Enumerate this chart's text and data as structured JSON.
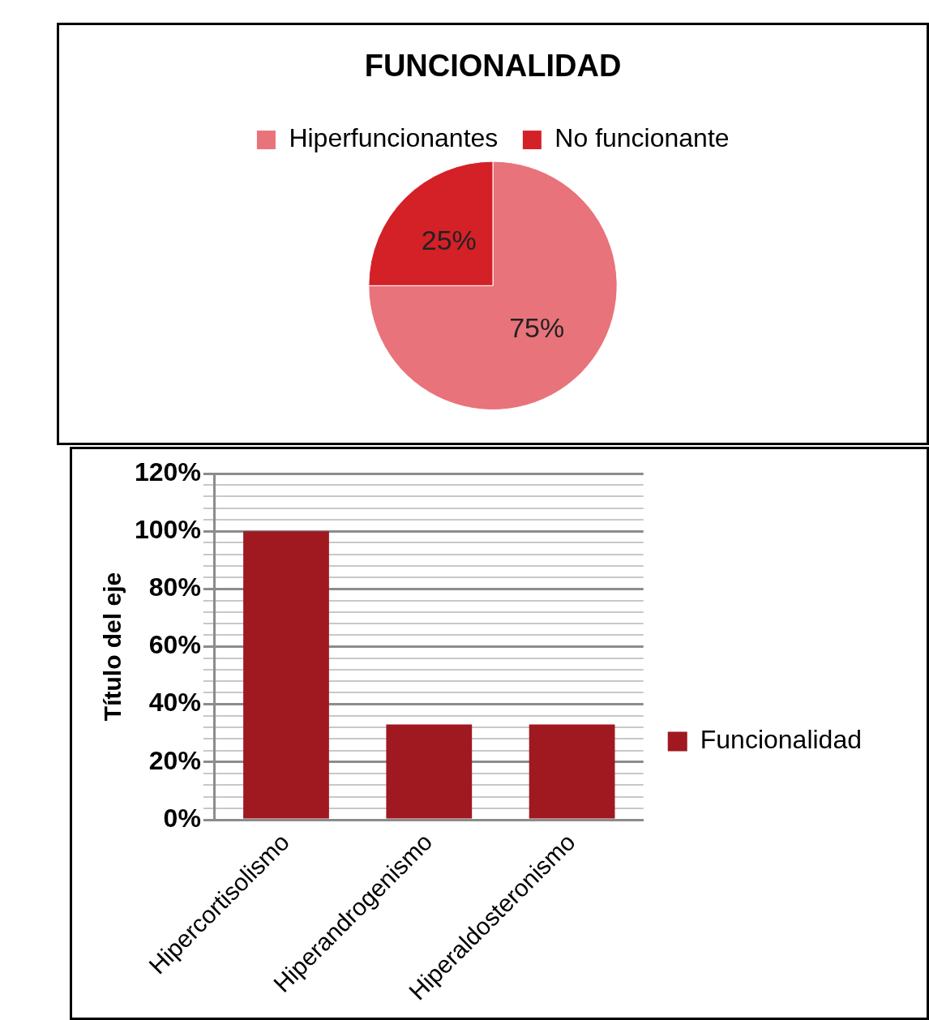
{
  "chart_data": [
    {
      "type": "pie",
      "title": "FUNCIONALIDAD",
      "categories": [
        "Hiperfuncionantes",
        "No funcionante"
      ],
      "values": [
        75,
        25
      ],
      "colors": [
        "#e8737a",
        "#d42027"
      ],
      "value_labels": [
        "75%",
        "25%"
      ],
      "legend": "top"
    },
    {
      "type": "bar",
      "ylabel": "Título del eje",
      "categories": [
        "Hipercortisolismo",
        "Hiperandrogenismo",
        "Hiperaldosteronismo"
      ],
      "series": [
        {
          "name": "Funcionalidad",
          "color": "#a01820",
          "values": [
            100,
            33,
            33
          ]
        }
      ],
      "ylim": [
        0,
        120
      ],
      "yticks": [
        {
          "value": 0,
          "label": "0%"
        },
        {
          "value": 4,
          "label": null
        },
        {
          "value": 8,
          "label": null
        },
        {
          "value": 12,
          "label": null
        },
        {
          "value": 16,
          "label": null
        },
        {
          "value": 20,
          "label": "20%"
        },
        {
          "value": 24,
          "label": null
        },
        {
          "value": 28,
          "label": null
        },
        {
          "value": 32,
          "label": null
        },
        {
          "value": 36,
          "label": null
        },
        {
          "value": 40,
          "label": "40%"
        },
        {
          "value": 44,
          "label": null
        },
        {
          "value": 48,
          "label": null
        },
        {
          "value": 52,
          "label": null
        },
        {
          "value": 56,
          "label": null
        },
        {
          "value": 60,
          "label": "60%"
        },
        {
          "value": 64,
          "label": null
        },
        {
          "value": 68,
          "label": null
        },
        {
          "value": 72,
          "label": null
        },
        {
          "value": 76,
          "label": null
        },
        {
          "value": 80,
          "label": "80%"
        },
        {
          "value": 84,
          "label": null
        },
        {
          "value": 88,
          "label": null
        },
        {
          "value": 92,
          "label": null
        },
        {
          "value": 96,
          "label": null
        },
        {
          "value": 100,
          "label": "100%"
        },
        {
          "value": 104,
          "label": null
        },
        {
          "value": 108,
          "label": null
        },
        {
          "value": 112,
          "label": null
        },
        {
          "value": 116,
          "label": null
        },
        {
          "value": 120,
          "label": "120%"
        }
      ],
      "grid": true,
      "legend": "right"
    }
  ]
}
